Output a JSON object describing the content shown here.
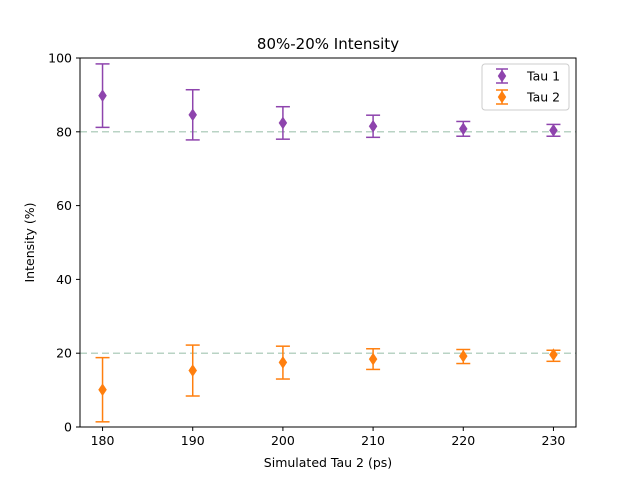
{
  "chart_data": {
    "type": "scatter",
    "title": "80%-20% Intensity",
    "xlabel": "Simulated Tau 2 (ps)",
    "ylabel": "Intensity (%)",
    "xlim": [
      177.5,
      232.5
    ],
    "ylim": [
      0,
      100
    ],
    "xticks": [
      180,
      190,
      200,
      210,
      220,
      230
    ],
    "yticks": [
      0,
      20,
      40,
      60,
      80,
      100
    ],
    "grid": false,
    "legend": "top-right",
    "reference_lines": [
      80,
      20
    ],
    "series": [
      {
        "name": "Tau 1",
        "color": "#8e44ad",
        "marker": "diamond",
        "points": [
          {
            "x": 180,
            "y": 89.8,
            "yerr_low": 81.2,
            "yerr_high": 98.4
          },
          {
            "x": 190,
            "y": 84.6,
            "yerr_low": 77.8,
            "yerr_high": 91.4
          },
          {
            "x": 200,
            "y": 82.4,
            "yerr_low": 78.0,
            "yerr_high": 86.8
          },
          {
            "x": 210,
            "y": 81.5,
            "yerr_low": 78.5,
            "yerr_high": 84.5
          },
          {
            "x": 220,
            "y": 80.8,
            "yerr_low": 78.8,
            "yerr_high": 82.8
          },
          {
            "x": 230,
            "y": 80.4,
            "yerr_low": 78.8,
            "yerr_high": 82.0
          }
        ]
      },
      {
        "name": "Tau 2",
        "color": "#ff7f0e",
        "marker": "diamond",
        "points": [
          {
            "x": 180,
            "y": 10.1,
            "yerr_low": 1.4,
            "yerr_high": 18.8
          },
          {
            "x": 190,
            "y": 15.3,
            "yerr_low": 8.4,
            "yerr_high": 22.2
          },
          {
            "x": 200,
            "y": 17.5,
            "yerr_low": 13.0,
            "yerr_high": 21.9
          },
          {
            "x": 210,
            "y": 18.4,
            "yerr_low": 15.6,
            "yerr_high": 21.2
          },
          {
            "x": 220,
            "y": 19.2,
            "yerr_low": 17.2,
            "yerr_high": 21.0
          },
          {
            "x": 230,
            "y": 19.6,
            "yerr_low": 17.8,
            "yerr_high": 20.8
          }
        ]
      }
    ],
    "colors": {
      "reference_line": "#b9d3c4",
      "axes": "#000000"
    }
  }
}
